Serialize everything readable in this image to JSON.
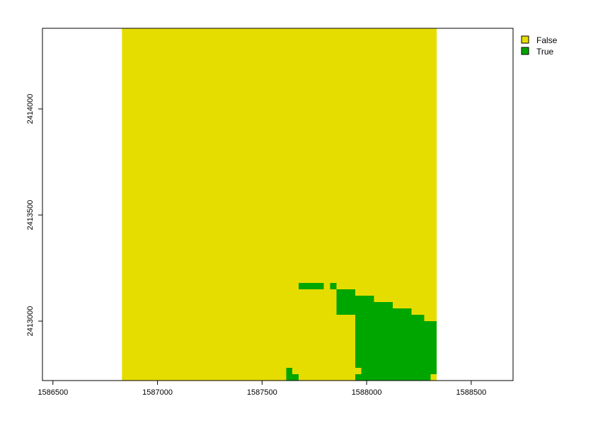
{
  "chart_data": {
    "type": "heatmap",
    "title": "",
    "xlabel": "",
    "ylabel": "",
    "xlim": [
      1586450,
      1588700
    ],
    "ylim": [
      2412720,
      2414380
    ],
    "grid": false,
    "legend_position": "top-right, outside plot",
    "x_ticks": [
      {
        "value": 1586500,
        "label": "1586500"
      },
      {
        "value": 1587000,
        "label": "1587000"
      },
      {
        "value": 1587500,
        "label": "1587500"
      },
      {
        "value": 1588000,
        "label": "1588000"
      },
      {
        "value": 1588500,
        "label": "1588500"
      }
    ],
    "y_ticks": [
      {
        "value": 2413000,
        "label": "2413000"
      },
      {
        "value": 2413500,
        "label": "2413500"
      },
      {
        "value": 2414000,
        "label": "2414000"
      }
    ],
    "classes": [
      {
        "name": "False",
        "color": "#e6dd00"
      },
      {
        "name": "True",
        "color": "#00a600"
      }
    ],
    "raster_extent": {
      "xmin": 1586830,
      "xmax": 1588335,
      "ymin": 2412720,
      "ymax": 2414380
    },
    "true_cells": [
      {
        "x0": 1587675,
        "x1": 1587795,
        "y0": 2413150,
        "y1": 2413180
      },
      {
        "x0": 1587825,
        "x1": 1587855,
        "y0": 2413150,
        "y1": 2413180
      },
      {
        "x0": 1587855,
        "x1": 1587945,
        "y0": 2413030,
        "y1": 2413150
      },
      {
        "x0": 1587945,
        "x1": 1588035,
        "y0": 2412780,
        "y1": 2413120
      },
      {
        "x0": 1588035,
        "x1": 1588125,
        "y0": 2412780,
        "y1": 2413090
      },
      {
        "x0": 1588125,
        "x1": 1588215,
        "y0": 2412780,
        "y1": 2413060
      },
      {
        "x0": 1588215,
        "x1": 1588275,
        "y0": 2412780,
        "y1": 2413030
      },
      {
        "x0": 1588275,
        "x1": 1588335,
        "y0": 2412750,
        "y1": 2413000
      },
      {
        "x0": 1587975,
        "x1": 1588305,
        "y0": 2412720,
        "y1": 2412780
      },
      {
        "x0": 1587945,
        "x1": 1587975,
        "y0": 2412720,
        "y1": 2412750
      },
      {
        "x0": 1587615,
        "x1": 1587645,
        "y0": 2412720,
        "y1": 2412780
      },
      {
        "x0": 1587645,
        "x1": 1587675,
        "y0": 2412720,
        "y1": 2412750
      }
    ]
  }
}
